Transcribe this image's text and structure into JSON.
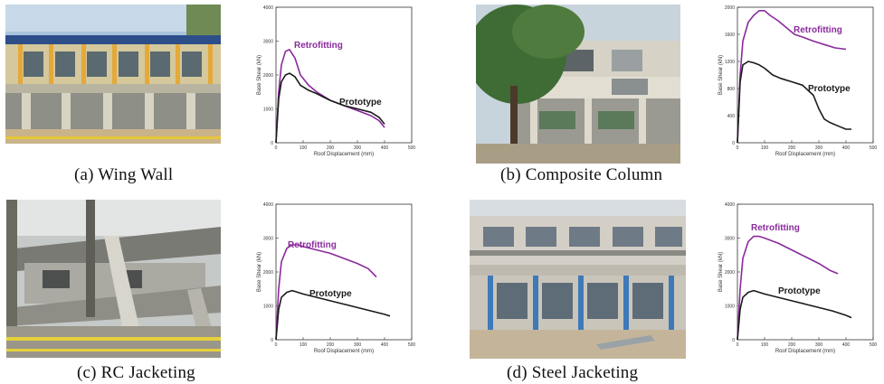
{
  "figure": {
    "panels": [
      {
        "id": "a",
        "caption": "(a) Wing Wall",
        "photo": "building-wing-wall-photo"
      },
      {
        "id": "b",
        "caption": "(b) Composite Column",
        "photo": "building-composite-column-photo"
      },
      {
        "id": "c",
        "caption": "(c) RC Jacketing",
        "photo": "building-rc-jacketing-photo"
      },
      {
        "id": "d",
        "caption": "(d) Steel Jacketing",
        "photo": "building-steel-jacketing-photo"
      }
    ]
  },
  "colors": {
    "retrofitting": "#8a2a9c",
    "prototype": "#1a1a1a",
    "axis": "#333333"
  },
  "chart_data": [
    {
      "type": "line",
      "panel": "a",
      "xlabel": "Roof Displacement (mm)",
      "ylabel": "Base Shear (kN)",
      "xlim": [
        0,
        500
      ],
      "ylim": [
        0,
        4000
      ],
      "xticks": [
        "0",
        "100",
        "200",
        "300",
        "400",
        "500"
      ],
      "yticks": [
        "0",
        "1000",
        "2000",
        "3000",
        "4000"
      ],
      "series": [
        {
          "name": "Retrofitting",
          "color": "#8a2a9c",
          "x": [
            0,
            10,
            20,
            35,
            50,
            70,
            90,
            120,
            150,
            200,
            250,
            300,
            350,
            380,
            400
          ],
          "y": [
            0,
            1500,
            2300,
            2700,
            2750,
            2500,
            2000,
            1700,
            1500,
            1250,
            1100,
            950,
            800,
            650,
            450
          ]
        },
        {
          "name": "Prototype",
          "color": "#1a1a1a",
          "x": [
            0,
            10,
            20,
            35,
            50,
            70,
            90,
            120,
            150,
            200,
            250,
            300,
            350,
            380,
            400
          ],
          "y": [
            0,
            1300,
            1800,
            2000,
            2050,
            1950,
            1700,
            1550,
            1450,
            1250,
            1100,
            1000,
            900,
            750,
            550
          ]
        }
      ]
    },
    {
      "type": "line",
      "panel": "b",
      "xlabel": "Roof Displacement (mm)",
      "ylabel": "Base Shear (kN)",
      "xlim": [
        0,
        500
      ],
      "ylim": [
        0,
        2000
      ],
      "xticks": [
        "0",
        "100",
        "200",
        "300",
        "400",
        "500"
      ],
      "yticks": [
        "0",
        "400",
        "800",
        "1200",
        "1600",
        "2000"
      ],
      "series": [
        {
          "name": "Retrofitting",
          "color": "#8a2a9c",
          "x": [
            0,
            10,
            20,
            40,
            60,
            80,
            100,
            120,
            150,
            180,
            210,
            240,
            280,
            320,
            360,
            400
          ],
          "y": [
            0,
            1000,
            1500,
            1780,
            1880,
            1950,
            1950,
            1880,
            1800,
            1700,
            1600,
            1560,
            1500,
            1450,
            1400,
            1380
          ]
        },
        {
          "name": "Prototype",
          "color": "#1a1a1a",
          "x": [
            0,
            10,
            20,
            40,
            60,
            80,
            100,
            130,
            160,
            200,
            240,
            280,
            300,
            320,
            340,
            370,
            400,
            420
          ],
          "y": [
            0,
            900,
            1150,
            1200,
            1180,
            1150,
            1100,
            1000,
            950,
            900,
            850,
            700,
            500,
            350,
            300,
            250,
            200,
            200
          ]
        }
      ]
    },
    {
      "type": "line",
      "panel": "c",
      "xlabel": "Roof Displacement (mm)",
      "ylabel": "Base Shear (kN)",
      "xlim": [
        0,
        500
      ],
      "ylim": [
        0,
        4000
      ],
      "xticks": [
        "0",
        "100",
        "200",
        "300",
        "400",
        "500"
      ],
      "yticks": [
        "0",
        "1000",
        "2000",
        "3000",
        "4000"
      ],
      "series": [
        {
          "name": "Retrofitting",
          "color": "#8a2a9c",
          "x": [
            0,
            10,
            20,
            40,
            60,
            80,
            100,
            150,
            200,
            250,
            300,
            340,
            370
          ],
          "y": [
            0,
            1500,
            2300,
            2700,
            2800,
            2800,
            2750,
            2650,
            2550,
            2400,
            2250,
            2100,
            1850
          ]
        },
        {
          "name": "Prototype",
          "color": "#1a1a1a",
          "x": [
            0,
            10,
            20,
            40,
            60,
            80,
            100,
            150,
            200,
            250,
            300,
            350,
            400,
            420
          ],
          "y": [
            0,
            900,
            1250,
            1400,
            1450,
            1400,
            1350,
            1250,
            1150,
            1050,
            950,
            850,
            750,
            700
          ]
        }
      ]
    },
    {
      "type": "line",
      "panel": "d",
      "xlabel": "Roof Displacement (mm)",
      "ylabel": "Base Shear (kN)",
      "xlim": [
        0,
        500
      ],
      "ylim": [
        0,
        4000
      ],
      "xticks": [
        "0",
        "100",
        "200",
        "300",
        "400",
        "500"
      ],
      "yticks": [
        "0",
        "1000",
        "2000",
        "3000",
        "4000"
      ],
      "series": [
        {
          "name": "Retrofitting",
          "color": "#8a2a9c",
          "x": [
            0,
            10,
            20,
            40,
            60,
            80,
            100,
            150,
            200,
            250,
            300,
            340,
            370
          ],
          "y": [
            0,
            1500,
            2400,
            2900,
            3050,
            3050,
            3000,
            2850,
            2650,
            2450,
            2250,
            2050,
            1950
          ]
        },
        {
          "name": "Prototype",
          "color": "#1a1a1a",
          "x": [
            0,
            10,
            20,
            40,
            60,
            80,
            100,
            150,
            200,
            250,
            300,
            350,
            400,
            420
          ],
          "y": [
            0,
            900,
            1250,
            1400,
            1450,
            1400,
            1350,
            1250,
            1150,
            1050,
            950,
            850,
            720,
            650
          ]
        }
      ]
    }
  ]
}
